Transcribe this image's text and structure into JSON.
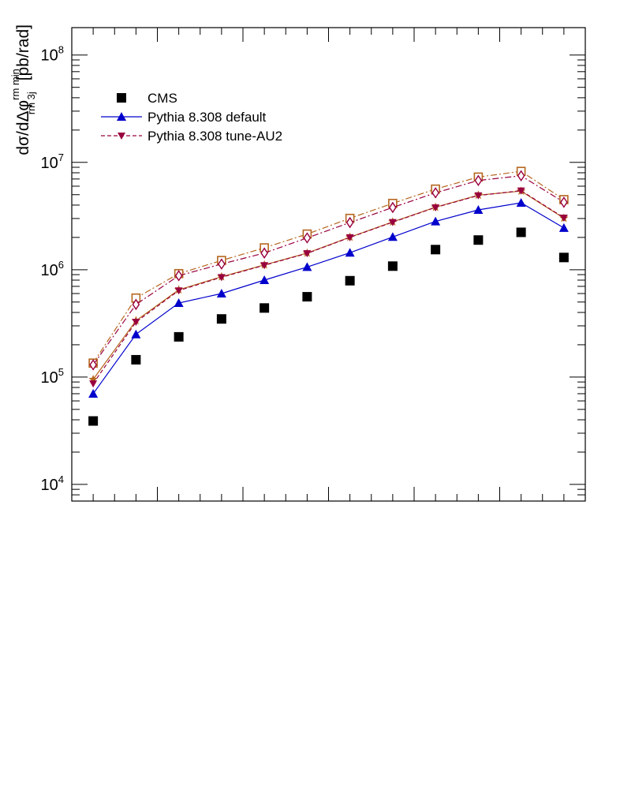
{
  "chart_data": {
    "type": "line",
    "yscale": "log",
    "ylim": [
      7000,
      180000000
    ],
    "xlim": [
      0.5,
      12.5
    ],
    "x": [
      1,
      2,
      3,
      4,
      5,
      6,
      7,
      8,
      9,
      10,
      11,
      12
    ],
    "ylabel": {
      "main": "dσ/dΔφ",
      "superscript": "rm min",
      "subscript": "rm 3j",
      "unit": "[pb/rad]"
    },
    "ytick_labels": [
      {
        "base": "10",
        "exp": "4",
        "value": 10000
      },
      {
        "base": "10",
        "exp": "5",
        "value": 100000
      },
      {
        "base": "10",
        "exp": "6",
        "value": 1000000
      },
      {
        "base": "10",
        "exp": "7",
        "value": 10000000
      },
      {
        "base": "10",
        "exp": "8",
        "value": 100000000
      }
    ],
    "grid": false,
    "legend_position": "top-left",
    "series": [
      {
        "name": "CMS",
        "values": [
          39000,
          145000,
          237000,
          348000,
          440000,
          560000,
          790000,
          1080000,
          1540000,
          1890000,
          2230000,
          1300000
        ],
        "color": "#000000",
        "marker": "filled-square",
        "line": "none",
        "legend": true
      },
      {
        "name": "Pythia 8.308 default",
        "values": [
          70000,
          250000,
          490000,
          600000,
          800000,
          1060000,
          1440000,
          2020000,
          2820000,
          3610000,
          4200000,
          2450000
        ],
        "color": "#0000cc",
        "marker": "filled-triangle-up",
        "line": "solid",
        "legend": true
      },
      {
        "name": "Pythia 8.308 tune-AU2",
        "values": [
          87000,
          326000,
          640000,
          850000,
          1100000,
          1420000,
          2000000,
          2770000,
          3800000,
          4910000,
          5450000,
          3050000
        ],
        "color": "#99003f",
        "marker": "filled-triangle-down",
        "line": "dashed",
        "legend": true
      },
      {
        "values": [
          95000,
          335000,
          650000,
          860000,
          1110000,
          1430000,
          2010000,
          2790000,
          3820000,
          4950000,
          5400000,
          3020000
        ],
        "color": "#b5651d",
        "marker": "star",
        "line": "solid",
        "legend": false
      },
      {
        "values": [
          135000,
          545000,
          920000,
          1220000,
          1600000,
          2150000,
          3010000,
          4150000,
          5640000,
          7300000,
          8250000,
          4500000
        ],
        "color": "#b5651d",
        "marker": "open-square",
        "line": "dashdot",
        "legend": false
      },
      {
        "values": [
          130000,
          475000,
          880000,
          1130000,
          1430000,
          1980000,
          2750000,
          3800000,
          5200000,
          6780000,
          7500000,
          4250000
        ],
        "color": "#99003f",
        "marker": "open-diamond",
        "line": "dashdot",
        "legend": false
      }
    ]
  }
}
